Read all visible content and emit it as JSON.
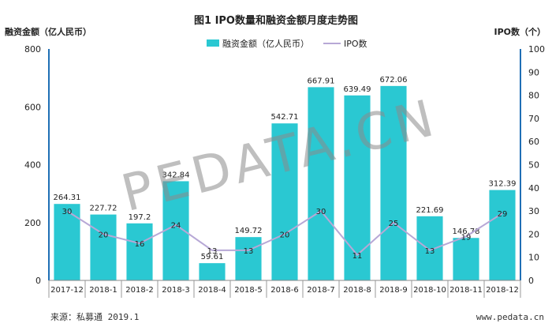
{
  "chart_data": {
    "type": "bar",
    "title": "图1 IPO数量和融资金额月度走势图",
    "ylabel_left": "融资金额（亿人民币）",
    "ylabel_right": "IPO数（个）",
    "categories": [
      "2017-12",
      "2018-1",
      "2018-2",
      "2018-3",
      "2018-4",
      "2018-5",
      "2018-6",
      "2018-7",
      "2018-8",
      "2018-9",
      "2018-10",
      "2018-11",
      "2018-12"
    ],
    "series": [
      {
        "name": "融资金额（亿人民币）",
        "type": "bar",
        "axis": "left",
        "color": "#2ac8d2",
        "values": [
          264.31,
          227.72,
          197.2,
          342.84,
          59.61,
          149.72,
          542.71,
          667.91,
          639.49,
          672.06,
          221.69,
          146.78,
          312.39
        ],
        "labels": [
          "264.31",
          "227.72",
          "197.2",
          "342.84",
          "59.61",
          "149.72",
          "542.71",
          "667.91",
          "639.49",
          "672.06",
          "221.69",
          "146.78",
          "312.39"
        ]
      },
      {
        "name": "IPO数",
        "type": "line",
        "axis": "right",
        "color": "#b7a8d6",
        "values": [
          30,
          20,
          16,
          24,
          13,
          13,
          20,
          30,
          11,
          25,
          13,
          19,
          29
        ]
      }
    ],
    "ylim_left": [
      0,
      800
    ],
    "yticks_left": [
      0,
      200,
      400,
      600,
      800
    ],
    "ylim_right": [
      0,
      100
    ],
    "yticks_right": [
      0,
      10,
      20,
      30,
      40,
      50,
      60,
      70,
      80,
      90,
      100
    ],
    "legend": "top-center",
    "grid": false
  },
  "footer": {
    "source": "来源：私募通 2019.1",
    "website": "www.pedata.cn"
  },
  "watermark": "PEDATA.CN"
}
